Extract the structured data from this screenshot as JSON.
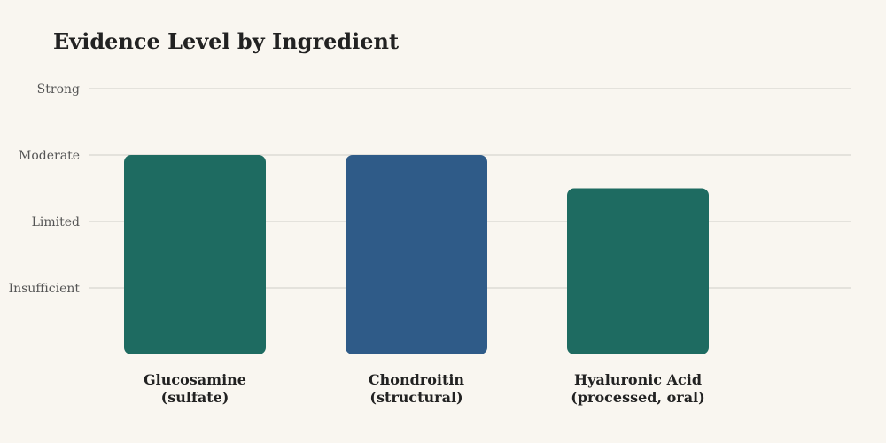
{
  "chart_data": {
    "type": "bar",
    "title": "Evidence Level by Ingredient",
    "categories": [
      [
        "Glucosamine",
        "(sulfate)"
      ],
      [
        "Chondroitin",
        "(structural)"
      ],
      [
        "Hyaluronic Acid",
        "(processed, oral)"
      ]
    ],
    "values": [
      3,
      3,
      2.5
    ],
    "colors": [
      "#1e6b61",
      "#2f5b88",
      "#1e6b61"
    ],
    "yticks": [
      {
        "value": 1,
        "label": "Insufficient"
      },
      {
        "value": 2,
        "label": "Limited"
      },
      {
        "value": 3,
        "label": "Moderate"
      },
      {
        "value": 4,
        "label": "Strong"
      }
    ],
    "ylim": [
      0,
      4
    ],
    "grid": true,
    "xlabel": "",
    "ylabel": ""
  }
}
